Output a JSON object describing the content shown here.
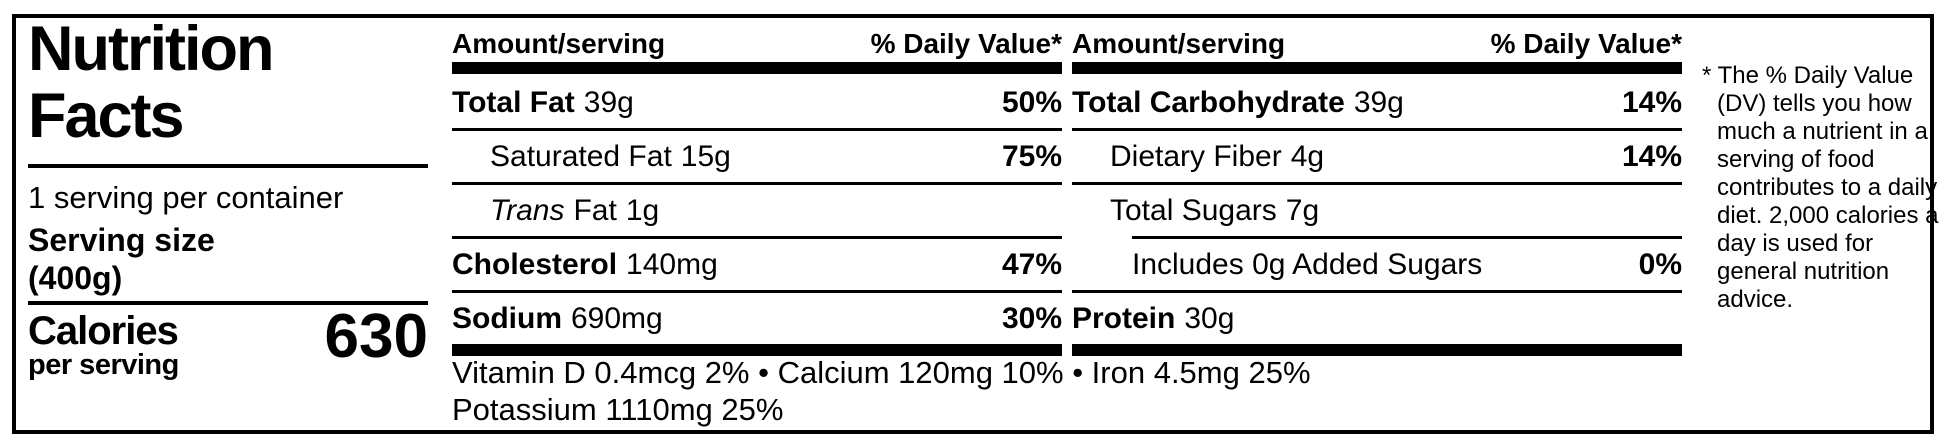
{
  "panel": {
    "title_line1": "Nutrition",
    "title_line2": "Facts",
    "servings_per_container": "1 serving per container",
    "serving_size_label": "Serving size",
    "serving_size_value": "(400g)",
    "calories_label": "Calories",
    "calories_sublabel": "per serving",
    "calories_value": "630"
  },
  "col1": {
    "header_amount": "Amount/serving",
    "header_dv": "% Daily Value*",
    "rows": [
      {
        "name": "Total Fat",
        "amount": "39g",
        "dv": "50%"
      },
      {
        "name": "Saturated Fat",
        "amount": "15g",
        "dv": "75%"
      },
      {
        "name_italic": "Trans",
        "name": "Fat",
        "amount": "1g",
        "dv": ""
      },
      {
        "name": "Cholesterol",
        "amount": "140mg",
        "dv": "47%"
      },
      {
        "name": "Sodium",
        "amount": "690mg",
        "dv": "30%"
      }
    ]
  },
  "col2": {
    "header_amount": "Amount/serving",
    "header_dv": "% Daily Value*",
    "rows": [
      {
        "name": "Total Carbohydrate",
        "amount": "39g",
        "dv": "14%"
      },
      {
        "name": "Dietary Fiber",
        "amount": "4g",
        "dv": "14%"
      },
      {
        "name": "Total Sugars",
        "amount": "7g",
        "dv": ""
      },
      {
        "name": "Includes 0g Added Sugars",
        "amount": "",
        "dv": "0%"
      },
      {
        "name": "Protein",
        "amount": "30g",
        "dv": ""
      }
    ]
  },
  "micronutrients": {
    "line1": "Vitamin D 0.4mcg 2% • Calcium 120mg 10% • Iron 4.5mg 25%",
    "line2": "Potassium 1110mg 25%"
  },
  "footnote": "* The % Daily Value (DV) tells you how much a nutrient in a serving of food contributes to a daily diet. 2,000 calories a day is used for general nutrition advice."
}
